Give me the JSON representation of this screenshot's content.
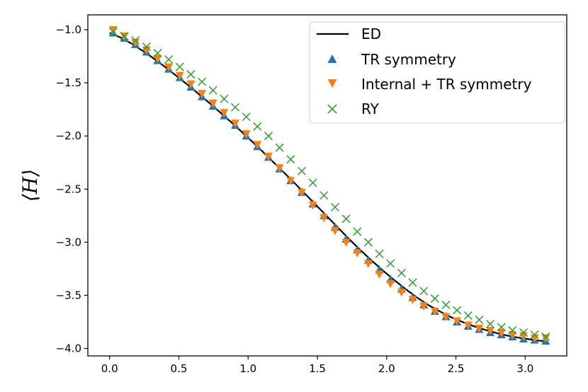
{
  "chart_data": {
    "type": "line",
    "title": "",
    "xlabel": "",
    "ylabel": "⟨H⟩",
    "xlim": [
      -0.157,
      3.3
    ],
    "ylim": [
      -4.07,
      -0.86
    ],
    "xticks": [
      0.0,
      0.5,
      1.0,
      1.5,
      2.0,
      2.5,
      3.0
    ],
    "xtick_labels": [
      "0.0",
      "0.5",
      "1.0",
      "1.5",
      "2.0",
      "2.5",
      "3.0"
    ],
    "yticks": [
      -1.0,
      -1.5,
      -2.0,
      -2.5,
      -3.0,
      -3.5,
      -4.0
    ],
    "ytick_labels": [
      "−1.0",
      "−1.5",
      "−2.0",
      "−2.5",
      "−3.0",
      "−3.5",
      "−4.0"
    ],
    "legend_position": "top-right",
    "series": [
      {
        "name": "ED",
        "kind": "line",
        "color": "#000000",
        "x": [
          0.0,
          0.0821,
          0.1643,
          0.2464,
          0.3286,
          0.4107,
          0.4929,
          0.575,
          0.6571,
          0.7393,
          0.8214,
          0.9036,
          0.9857,
          1.0679,
          1.15,
          1.2321,
          1.3143,
          1.3964,
          1.4786,
          1.5607,
          1.6429,
          1.725,
          1.8071,
          1.8893,
          1.9714,
          2.0536,
          2.1357,
          2.2179,
          2.3,
          2.3821,
          2.4643,
          2.5464,
          2.6286,
          2.7107,
          2.7929,
          2.875,
          2.9571,
          3.0393,
          3.1214,
          3.1416
        ],
        "y": [
          -1.03,
          -1.075,
          -1.135,
          -1.205,
          -1.28,
          -1.36,
          -1.445,
          -1.53,
          -1.62,
          -1.71,
          -1.805,
          -1.9,
          -2.0,
          -2.1,
          -2.205,
          -2.31,
          -2.415,
          -2.525,
          -2.635,
          -2.745,
          -2.855,
          -2.965,
          -3.07,
          -3.17,
          -3.265,
          -3.355,
          -3.44,
          -3.52,
          -3.59,
          -3.65,
          -3.705,
          -3.75,
          -3.79,
          -3.825,
          -3.855,
          -3.88,
          -3.9,
          -3.915,
          -3.93,
          -3.935
        ]
      },
      {
        "name": "TR symmetry",
        "kind": "triangle-up",
        "color": "#1f77b4",
        "x": [
          0.0263,
          0.1063,
          0.1864,
          0.2664,
          0.3465,
          0.4265,
          0.5066,
          0.5867,
          0.6667,
          0.7468,
          0.8268,
          0.9069,
          0.9869,
          1.067,
          1.147,
          1.2271,
          1.3071,
          1.3872,
          1.4673,
          1.5473,
          1.6274,
          1.7074,
          1.7875,
          1.8675,
          1.9476,
          2.0276,
          2.1077,
          2.1877,
          2.2678,
          2.3479,
          2.4279,
          2.508,
          2.588,
          2.6681,
          2.7481,
          2.8282,
          2.9082,
          2.9883,
          3.0683,
          3.1484
        ],
        "y": [
          -1.03,
          -1.08,
          -1.14,
          -1.21,
          -1.29,
          -1.37,
          -1.45,
          -1.54,
          -1.63,
          -1.72,
          -1.81,
          -1.9,
          -2.0,
          -2.1,
          -2.2,
          -2.31,
          -2.42,
          -2.53,
          -2.64,
          -2.75,
          -2.86,
          -2.97,
          -3.07,
          -3.17,
          -3.26,
          -3.35,
          -3.44,
          -3.52,
          -3.59,
          -3.65,
          -3.7,
          -3.75,
          -3.79,
          -3.82,
          -3.85,
          -3.87,
          -3.89,
          -3.91,
          -3.92,
          -3.93
        ]
      },
      {
        "name": "Internal + TR symmetry",
        "kind": "triangle-down",
        "color": "#ff7f0e",
        "x": [
          0.0263,
          0.1063,
          0.1864,
          0.2664,
          0.3465,
          0.4265,
          0.5066,
          0.5867,
          0.6667,
          0.7468,
          0.8268,
          0.9069,
          0.9869,
          1.067,
          1.147,
          1.2271,
          1.3071,
          1.3872,
          1.4673,
          1.5473,
          1.6274,
          1.7074,
          1.7875,
          1.8675,
          1.9476,
          2.0276,
          2.1077,
          2.1877,
          2.2678,
          2.3479,
          2.4279,
          2.508,
          2.588,
          2.6681,
          2.7481,
          2.8282,
          2.9082,
          2.9883,
          3.0683,
          3.1484
        ],
        "y": [
          -1.0,
          -1.06,
          -1.12,
          -1.19,
          -1.27,
          -1.35,
          -1.43,
          -1.51,
          -1.6,
          -1.69,
          -1.78,
          -1.88,
          -1.98,
          -2.08,
          -2.19,
          -2.3,
          -2.42,
          -2.53,
          -2.65,
          -2.77,
          -2.89,
          -3.0,
          -3.1,
          -3.2,
          -3.3,
          -3.39,
          -3.47,
          -3.54,
          -3.6,
          -3.65,
          -3.7,
          -3.74,
          -3.78,
          -3.81,
          -3.83,
          -3.85,
          -3.87,
          -3.88,
          -3.9,
          -3.9
        ]
      },
      {
        "name": "RY",
        "kind": "x-marker",
        "color": "#2ca02c",
        "x": [
          0.0263,
          0.1063,
          0.1864,
          0.2664,
          0.3465,
          0.4265,
          0.5066,
          0.5867,
          0.6667,
          0.7468,
          0.8268,
          0.9069,
          0.9869,
          1.067,
          1.147,
          1.2271,
          1.3071,
          1.3872,
          1.4673,
          1.5473,
          1.6274,
          1.7074,
          1.7875,
          1.8675,
          1.9476,
          2.0276,
          2.1077,
          2.1877,
          2.2678,
          2.3479,
          2.4279,
          2.508,
          2.588,
          2.6681,
          2.7481,
          2.8282,
          2.9082,
          2.9883,
          3.0683,
          3.1484
        ],
        "y": [
          -1.02,
          -1.06,
          -1.1,
          -1.16,
          -1.22,
          -1.28,
          -1.35,
          -1.42,
          -1.49,
          -1.57,
          -1.65,
          -1.73,
          -1.82,
          -1.91,
          -2.0,
          -2.11,
          -2.22,
          -2.33,
          -2.44,
          -2.56,
          -2.67,
          -2.78,
          -2.9,
          -3.0,
          -3.11,
          -3.2,
          -3.29,
          -3.38,
          -3.46,
          -3.53,
          -3.59,
          -3.64,
          -3.69,
          -3.73,
          -3.77,
          -3.8,
          -3.83,
          -3.85,
          -3.87,
          -3.89
        ]
      }
    ]
  }
}
